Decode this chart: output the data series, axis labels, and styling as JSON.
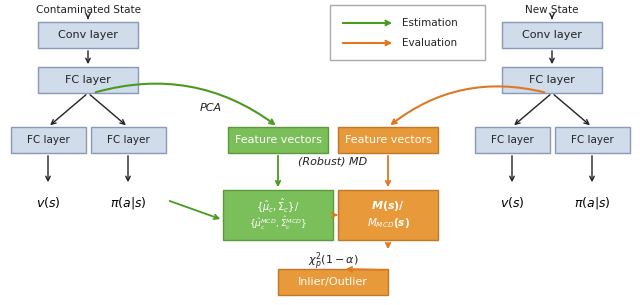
{
  "figsize": [
    6.4,
    3.05
  ],
  "dpi": 100,
  "bg_color": "#ffffff",
  "box_blue_face": "#d0dcea",
  "box_blue_edge": "#8899bb",
  "box_green_face": "#7bbf5a",
  "box_green_edge": "#5a9a38",
  "box_orange_face": "#e8993a",
  "box_orange_edge": "#c07828",
  "arrow_green": "#4a9a20",
  "arrow_orange": "#e07820",
  "arrow_black": "#222222",
  "title_left": "Contaminated State",
  "title_right": "New State",
  "pca_label": "PCA",
  "robust_md_label": "(Robust) MD",
  "chi_label": "$\\chi_p^2(1-\\alpha)$",
  "estimation_label": "Estimation",
  "evaluation_label": "Evaluation"
}
